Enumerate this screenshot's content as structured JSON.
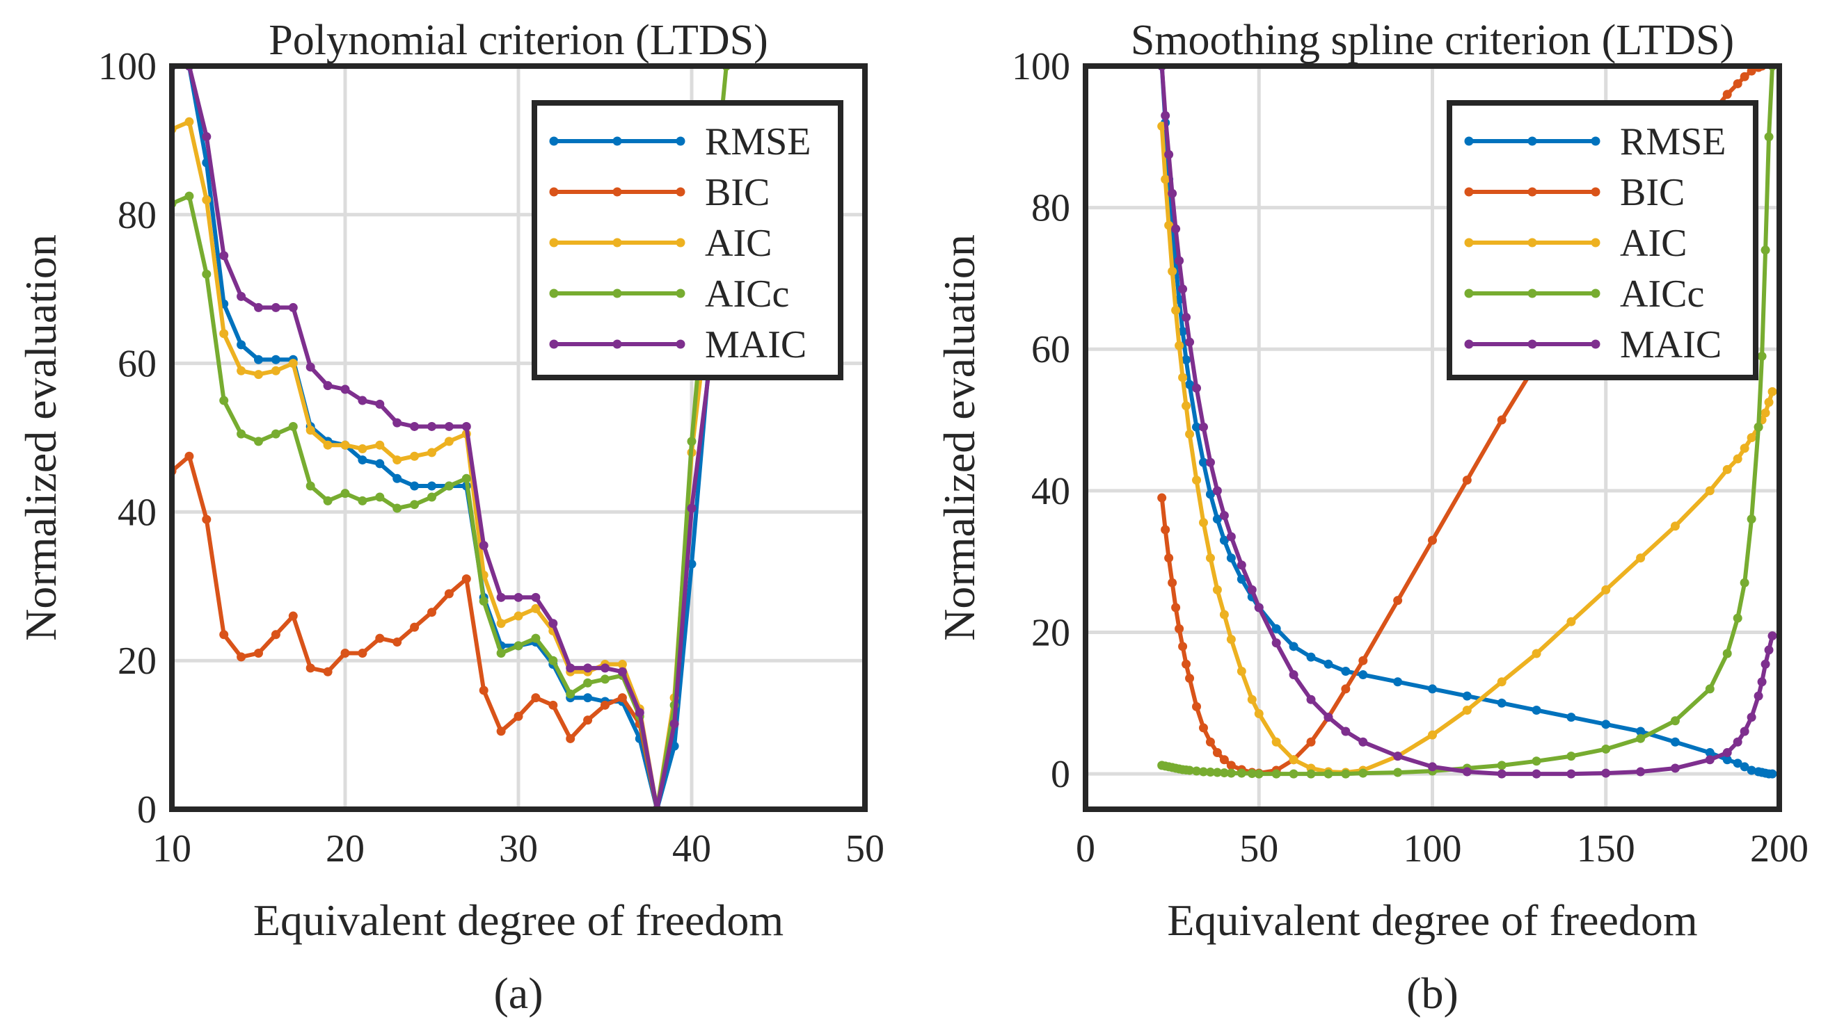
{
  "chart_data": [
    {
      "type": "line",
      "title": "Polynomial criterion (LTDS)",
      "xlabel": "Equivalent degree of freedom",
      "ylabel": "Normalized evaluation",
      "sublabel": "(a)",
      "xlim": [
        10,
        50
      ],
      "ylim": [
        0,
        100
      ],
      "xticks": [
        "10",
        "20",
        "30",
        "40",
        "50"
      ],
      "yticks": [
        "0",
        "20",
        "40",
        "60",
        "80",
        "100"
      ],
      "grid": true,
      "legend_position": "top-right",
      "x": [
        10,
        11,
        12,
        13,
        14,
        15,
        16,
        17,
        18,
        19,
        20,
        21,
        22,
        23,
        24,
        25,
        26,
        27,
        28,
        29,
        30,
        31,
        32,
        33,
        34,
        35,
        36,
        37,
        38,
        39,
        40,
        41,
        42
      ],
      "series": [
        {
          "name": "RMSE",
          "color": "#0072BD",
          "values": [
            100,
            100,
            87,
            68,
            62.5,
            60.5,
            60.5,
            60.5,
            51.5,
            49.5,
            49,
            47,
            46.5,
            44.5,
            43.5,
            43.5,
            43.5,
            43.5,
            28.5,
            22,
            22,
            22.5,
            19.5,
            15,
            15,
            14.5,
            14.5,
            9.5,
            0,
            8.5,
            33,
            60,
            null
          ]
        },
        {
          "name": "BIC",
          "color": "#D95319",
          "values": [
            45.5,
            47.5,
            39,
            23.5,
            20.5,
            21,
            23.5,
            26,
            19,
            18.5,
            21,
            21,
            23,
            22.5,
            24.5,
            26.5,
            29,
            31,
            16,
            10.5,
            12.5,
            15,
            14,
            9.5,
            12,
            14,
            15,
            11.5,
            0,
            null,
            null,
            null,
            null
          ]
        },
        {
          "name": "AIC",
          "color": "#EDB120",
          "values": [
            91.5,
            92.5,
            82,
            64,
            59,
            58.5,
            59,
            60,
            51,
            49,
            49,
            48.5,
            49,
            47,
            47.5,
            48,
            49.5,
            50.5,
            31.5,
            25,
            26,
            27,
            24,
            18.5,
            18.5,
            19.5,
            19.5,
            13.5,
            0,
            15,
            48,
            68,
            null
          ]
        },
        {
          "name": "AICc",
          "color": "#77AC30",
          "values": [
            81.5,
            82.5,
            72,
            55,
            50.5,
            49.5,
            50.5,
            51.5,
            43.5,
            41.5,
            42.5,
            41.5,
            42,
            40.5,
            41,
            42,
            43.5,
            44.5,
            28,
            21,
            22,
            23,
            20,
            15.5,
            17,
            17.5,
            18,
            12.5,
            0,
            14,
            49.5,
            76,
            100
          ]
        },
        {
          "name": "MAIC",
          "color": "#7E2F8E",
          "values": [
            100,
            100,
            90.5,
            74.5,
            69,
            67.5,
            67.5,
            67.5,
            59.5,
            57,
            56.5,
            55,
            54.5,
            52,
            51.5,
            51.5,
            51.5,
            51.5,
            35.5,
            28.5,
            28.5,
            28.5,
            25,
            19,
            19,
            19,
            18.5,
            13,
            0,
            11.5,
            40.5,
            59,
            null
          ]
        }
      ]
    },
    {
      "type": "line",
      "title": "Smoothing spline criterion (LTDS)",
      "xlabel": "Equivalent degree of freedom",
      "ylabel": "Normalized evaluation",
      "sublabel": "(b)",
      "xlim": [
        0,
        200
      ],
      "ylim": [
        -5,
        100
      ],
      "xticks": [
        "0",
        "50",
        "100",
        "150",
        "200"
      ],
      "yticks": [
        "0",
        "20",
        "40",
        "60",
        "80",
        "100"
      ],
      "grid": true,
      "legend_position": "top-right",
      "x": [
        22,
        23,
        24,
        25,
        26,
        27,
        28,
        29,
        30,
        32,
        34,
        36,
        38,
        40,
        42,
        45,
        48,
        50,
        55,
        60,
        65,
        70,
        75,
        80,
        90,
        100,
        110,
        120,
        130,
        140,
        150,
        160,
        170,
        180,
        185,
        188,
        190,
        192,
        194,
        195,
        196,
        197,
        198
      ],
      "series": [
        {
          "name": "RMSE",
          "color": "#0072BD",
          "values": [
            100,
            92,
            84,
            77.5,
            72,
            67,
            62.5,
            58.5,
            55,
            49,
            44,
            39.5,
            36,
            33,
            30.5,
            27.5,
            25,
            23.5,
            20.5,
            18,
            16.5,
            15.5,
            14.5,
            14,
            13,
            12,
            11,
            10,
            9,
            8,
            7,
            6,
            4.5,
            3,
            2,
            1.5,
            1,
            0.5,
            0.3,
            0.2,
            0.1,
            0,
            0
          ]
        },
        {
          "name": "BIC",
          "color": "#D95319",
          "values": [
            39,
            34.5,
            30.5,
            27,
            23.5,
            20.5,
            18,
            15.5,
            13.5,
            9.5,
            6.5,
            4.5,
            3,
            2,
            1.2,
            0.6,
            0.2,
            0.1,
            0.5,
            2,
            4.5,
            8,
            12,
            16,
            24.5,
            33,
            41.5,
            50,
            58,
            66,
            73,
            80,
            86.5,
            93,
            96,
            97.5,
            98.5,
            99.3,
            99.8,
            100,
            null,
            null,
            null
          ]
        },
        {
          "name": "AIC",
          "color": "#EDB120",
          "values": [
            91.5,
            84,
            77.5,
            71,
            65.5,
            60.5,
            56,
            52,
            48,
            41.5,
            35.5,
            30.5,
            26,
            22.5,
            19,
            14.5,
            10.5,
            8.5,
            4.5,
            2,
            0.8,
            0.3,
            0.2,
            0.5,
            2.5,
            5.5,
            9,
            13,
            17,
            21.5,
            26,
            30.5,
            35,
            40,
            43,
            44.5,
            46,
            47.5,
            49,
            50,
            51,
            52.5,
            54
          ]
        },
        {
          "name": "AICc",
          "color": "#77AC30",
          "values": [
            1.2,
            1.1,
            1,
            0.9,
            0.8,
            0.7,
            0.6,
            0.55,
            0.5,
            0.4,
            0.3,
            0.25,
            0.2,
            0.15,
            0.1,
            0.1,
            0.05,
            0,
            0,
            0,
            0,
            0,
            0,
            0.1,
            0.2,
            0.4,
            0.8,
            1.2,
            1.8,
            2.5,
            3.5,
            5,
            7.5,
            12,
            17,
            22,
            27,
            36,
            49,
            59,
            74,
            90,
            100
          ]
        },
        {
          "name": "MAIC",
          "color": "#7E2F8E",
          "values": [
            100,
            93,
            87.5,
            82,
            77,
            72.5,
            68.5,
            64.5,
            61,
            54.5,
            49,
            44,
            40,
            36.5,
            33.5,
            29.5,
            26,
            23.5,
            18.5,
            14,
            10.5,
            8,
            6,
            4.5,
            2.5,
            1,
            0.3,
            0,
            0,
            0,
            0.1,
            0.3,
            0.8,
            2,
            3,
            4.5,
            6,
            8,
            11,
            13,
            15.5,
            17.5,
            19.5
          ]
        }
      ]
    }
  ]
}
